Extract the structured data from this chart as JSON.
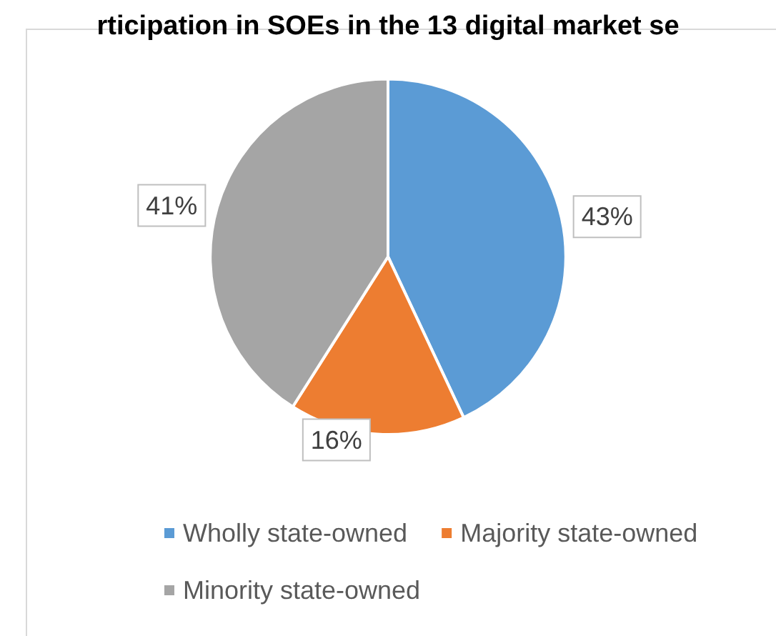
{
  "chart_data": {
    "type": "pie",
    "title": "rticipation in SOEs in the 13 digital market se",
    "categories": [
      "Wholly state-owned",
      "Majority state-owned",
      "Minority state-owned"
    ],
    "values": [
      43,
      16,
      41
    ],
    "colors": [
      "#5b9bd5",
      "#ed7d31",
      "#a5a5a5"
    ],
    "value_labels": [
      "43%",
      "16%",
      "41%"
    ],
    "legend": "bottom"
  }
}
